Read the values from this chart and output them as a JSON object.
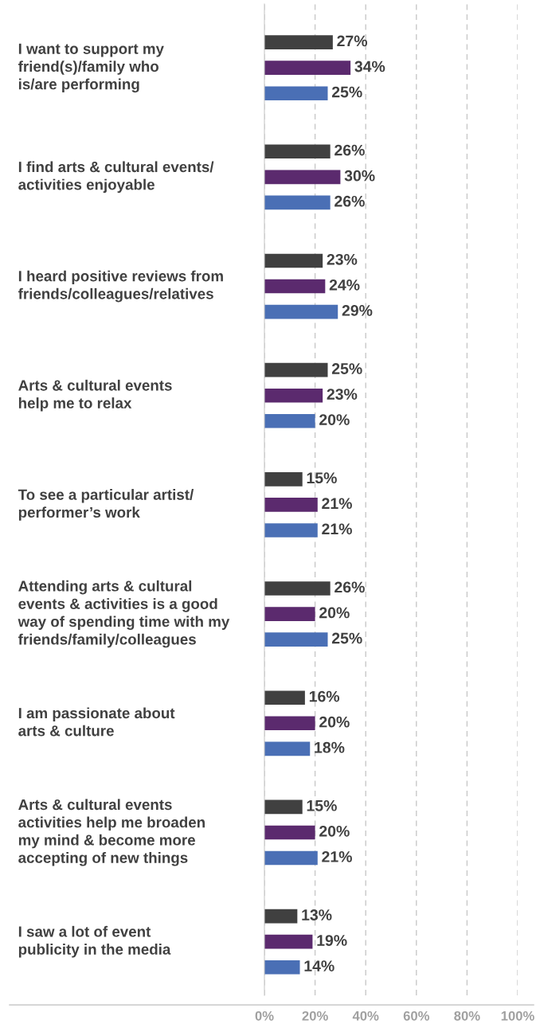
{
  "chart_data": {
    "type": "bar",
    "orientation": "horizontal",
    "categories": [
      "I want to support my\nfriend(s)/family who\nis/are performing",
      "I find arts & cultural events/\nactivities enjoyable",
      "I heard positive reviews from\nfriends/colleagues/relatives",
      "Arts & cultural events\nhelp me to relax",
      "To see a particular artist/\nperformer’s work",
      "Attending arts & cultural\nevents & activities is a good\nway of spending time with my\nfriends/family/colleagues",
      "I am passionate about\narts & culture",
      "Arts & cultural events\nactivities help me broaden\nmy mind & become more\naccepting of new things",
      "I saw a lot of event\npublicity in the media"
    ],
    "series": [
      {
        "color": "#404040",
        "values": [
          27,
          26,
          23,
          25,
          15,
          26,
          16,
          15,
          13
        ],
        "value_labels": [
          "27%",
          "26%",
          "23%",
          "25%",
          "15%",
          "26%",
          "16%",
          "15%",
          "13%"
        ]
      },
      {
        "color": "#5b2a6e",
        "values": [
          34,
          30,
          24,
          23,
          21,
          20,
          20,
          20,
          19
        ],
        "value_labels": [
          "34%",
          "30%",
          "24%",
          "23%",
          "21%",
          "20%",
          "20%",
          "20%",
          "19%"
        ]
      },
      {
        "color": "#4a6fb5",
        "values": [
          25,
          26,
          29,
          20,
          21,
          25,
          18,
          21,
          14
        ],
        "value_labels": [
          "25%",
          "26%",
          "29%",
          "20%",
          "21%",
          "25%",
          "18%",
          "21%",
          "14%"
        ]
      }
    ],
    "xlim": [
      0,
      100
    ],
    "xticks": [
      {
        "value": 0,
        "label": "0%"
      },
      {
        "value": 20,
        "label": "20%"
      },
      {
        "value": 40,
        "label": "40%"
      },
      {
        "value": 60,
        "label": "60%"
      },
      {
        "value": 80,
        "label": "80%"
      },
      {
        "value": 100,
        "label": "100%"
      }
    ],
    "grid": "x"
  }
}
